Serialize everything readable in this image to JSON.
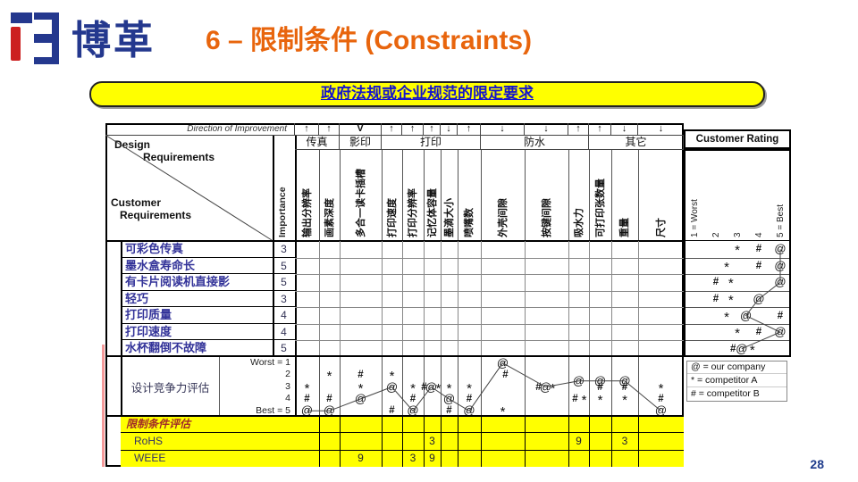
{
  "slide": {
    "logo_text": "博革",
    "title": "6 – 限制条件 (Constraints)",
    "banner": "政府法规或企业规范的限定要求",
    "page_number": "28"
  },
  "colors": {
    "title_orange": "#E8650D",
    "logo_blue": "#24388E",
    "logo_red": "#CC2020",
    "banner_yellow": "#FFFF00",
    "banner_text": "#1414CC",
    "req_label_blue": "#333399",
    "constraint_label_red": "#A02828",
    "section_yellow": "#FFFF00",
    "grid_gray": "#777777",
    "line_dark": "#000000",
    "pink_edge": "#F49A9A"
  },
  "matrix": {
    "direction_label": "Direction of Improvement",
    "corner": {
      "design": [
        "Design",
        "Requirements"
      ],
      "customer": [
        "Customer",
        "Requirements"
      ]
    },
    "importance_label": "Importance",
    "groups": [
      {
        "label": "传真",
        "start": 1,
        "end": 2
      },
      {
        "label": "影印",
        "start": 3,
        "end": 3
      },
      {
        "label": "打印",
        "start": 4,
        "end": 8
      },
      {
        "label": "防水",
        "start": 9,
        "end": 11
      },
      {
        "label": "其它",
        "start": 12,
        "end": 14
      }
    ],
    "columns": [
      {
        "label": "输出分辨率",
        "arrow": "↑"
      },
      {
        "label": "画素深度",
        "arrow": "↑"
      },
      {
        "label": "多合一读卡插槽",
        "arrow": "V"
      },
      {
        "label": "打印速度",
        "arrow": "↑"
      },
      {
        "label": "打印分辨率",
        "arrow": "↑"
      },
      {
        "label": "记忆体容量",
        "arrow": "↑"
      },
      {
        "label": "墨滴大小",
        "arrow": "↓"
      },
      {
        "label": "喷嘴数",
        "arrow": "↑"
      },
      {
        "label": "外壳间隙",
        "arrow": "↓"
      },
      {
        "label": "按键间隙",
        "arrow": "↓"
      },
      {
        "label": "吸水力",
        "arrow": "↑"
      },
      {
        "label": "可打印张数量",
        "arrow": "↑"
      },
      {
        "label": "重量",
        "arrow": "↓"
      },
      {
        "label": "尺寸",
        "arrow": "↓"
      }
    ],
    "rows": [
      {
        "label": "可彩色传真",
        "importance": "3",
        "rating": [
          [
            "*",
            3
          ],
          [
            "#",
            4
          ],
          [
            "@",
            5
          ]
        ]
      },
      {
        "label": "墨水盒寿命长",
        "importance": "5",
        "rating": [
          [
            "*",
            2.5
          ],
          [
            "#",
            4
          ],
          [
            "@",
            5
          ]
        ]
      },
      {
        "label": "有卡片阅读机直接影",
        "importance": "5",
        "rating": [
          [
            "#",
            2
          ],
          [
            "*",
            2.7
          ],
          [
            "@",
            5
          ]
        ]
      },
      {
        "label": "轻巧",
        "importance": "3",
        "rating": [
          [
            "#",
            2
          ],
          [
            "*",
            2.7
          ],
          [
            "@",
            4
          ]
        ]
      },
      {
        "label": "打印质量",
        "importance": "4",
        "rating": [
          [
            "*",
            2.5
          ],
          [
            "@",
            3.4
          ],
          [
            "#",
            5
          ]
        ]
      },
      {
        "label": "打印速度",
        "importance": "4",
        "rating": [
          [
            "*",
            3
          ],
          [
            "#",
            4
          ],
          [
            "@",
            5
          ]
        ]
      },
      {
        "label": "水杯翻倒不故障",
        "importance": "5",
        "rating": [
          [
            "#",
            2.8
          ],
          [
            "@",
            3.2
          ],
          [
            "*",
            3.7
          ]
        ]
      }
    ],
    "customer_rating": {
      "header": "Customer Rating",
      "scale_labels": [
        "1 = Worst",
        "2",
        "3",
        "4",
        "5 = Best"
      ]
    },
    "assessment": {
      "label": "设计竞争力评估",
      "scale_labels": [
        "Worst = 1",
        "2",
        "3",
        "4",
        "Best = 5"
      ],
      "marks": [
        [
          [
            "*",
            3
          ],
          [
            "#",
            4
          ],
          [
            "@",
            5
          ]
        ],
        [
          [
            "*",
            2
          ],
          [
            "#",
            4
          ],
          [
            "@",
            5
          ]
        ],
        [
          [
            "#",
            2
          ],
          [
            "*",
            3
          ],
          [
            "@",
            4
          ]
        ],
        [
          [
            "*",
            2
          ],
          [
            "@",
            3
          ],
          [
            "#",
            5
          ]
        ],
        [
          [
            "*",
            3
          ],
          [
            "#",
            4
          ],
          [
            "@",
            5
          ]
        ],
        [
          [
            "#",
            3,
            -9
          ],
          [
            "@",
            3,
            -1
          ],
          [
            "*",
            3,
            7
          ]
        ],
        [
          [
            "*",
            3
          ],
          [
            "@",
            4
          ],
          [
            "#",
            5
          ]
        ],
        [
          [
            "*",
            3
          ],
          [
            "#",
            4
          ],
          [
            "@",
            5
          ]
        ],
        [
          [
            "@",
            1
          ],
          [
            "#",
            2,
            3
          ],
          [
            "*",
            5
          ]
        ],
        [
          [
            "#",
            3,
            -9
          ],
          [
            "@",
            3,
            -1
          ],
          [
            "*",
            3,
            7
          ]
        ],
        [
          [
            "@",
            2.5
          ],
          [
            "#",
            4,
            -4
          ],
          [
            "*",
            4,
            6
          ]
        ],
        [
          [
            "@",
            2.5
          ],
          [
            "#",
            3
          ],
          [
            "*",
            4
          ]
        ],
        [
          [
            "@",
            2.5
          ],
          [
            "#",
            3
          ],
          [
            "*",
            4
          ]
        ],
        [
          [
            "*",
            3
          ],
          [
            "#",
            4
          ],
          [
            "@",
            5
          ]
        ]
      ],
      "legend": [
        "@ = our company",
        "* = competitor A",
        "# = competitor B"
      ]
    },
    "constraints": {
      "label": "限制条件评估",
      "rows": [
        {
          "label": "RoHS",
          "values": {
            "6": "3",
            "11": "9",
            "13": "3"
          }
        },
        {
          "label": "WEEE",
          "values": {
            "3": "9",
            "5": "3",
            "6": "9"
          }
        }
      ]
    }
  }
}
